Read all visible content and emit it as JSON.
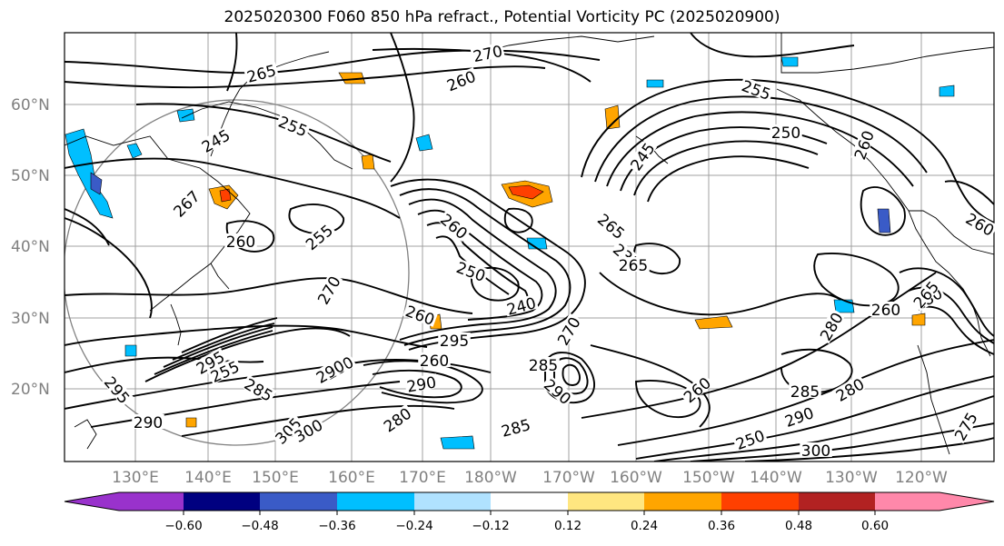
{
  "title": "2025020300 F060 850 hPa refract., Potential Vorticity PC (2025020900)",
  "map": {
    "lat_ticks": [
      "60°N",
      "50°N",
      "40°N",
      "30°N",
      "20°N"
    ],
    "lon_ticks": [
      "130°E",
      "140°E",
      "150°E",
      "160°E",
      "170°E",
      "180°W",
      "170°W",
      "160°W",
      "150°W",
      "140°W",
      "130°W",
      "120°W"
    ],
    "contour_labels": [
      "265",
      "270",
      "260",
      "255",
      "255",
      "250",
      "245",
      "260",
      "265",
      "267",
      "260",
      "255",
      "260",
      "250",
      "240",
      "235",
      "265",
      "270",
      "260",
      "270",
      "295",
      "285",
      "290",
      "280",
      "295",
      "305",
      "290",
      "280",
      "285",
      "300",
      "285",
      "290",
      "250",
      "260",
      "280",
      "285",
      "290",
      "260",
      "280",
      "280",
      "295",
      "255",
      "300",
      "275",
      "260",
      "265",
      "260",
      "290",
      "245"
    ],
    "line_color": "#000000",
    "grid_color": "#a0a0a0"
  },
  "colorbar": {
    "ticks": [
      "−0.60",
      "−0.48",
      "−0.36",
      "−0.24",
      "−0.12",
      "0.12",
      "0.24",
      "0.36",
      "0.48",
      "0.60"
    ],
    "colors": [
      "#9932cc",
      "#000080",
      "#3a5bc7",
      "#00bfff",
      "#b0e2ff",
      "#ffffff",
      "#ffe680",
      "#ffa500",
      "#ff4000",
      "#b22222",
      "#ff88aa"
    ]
  }
}
